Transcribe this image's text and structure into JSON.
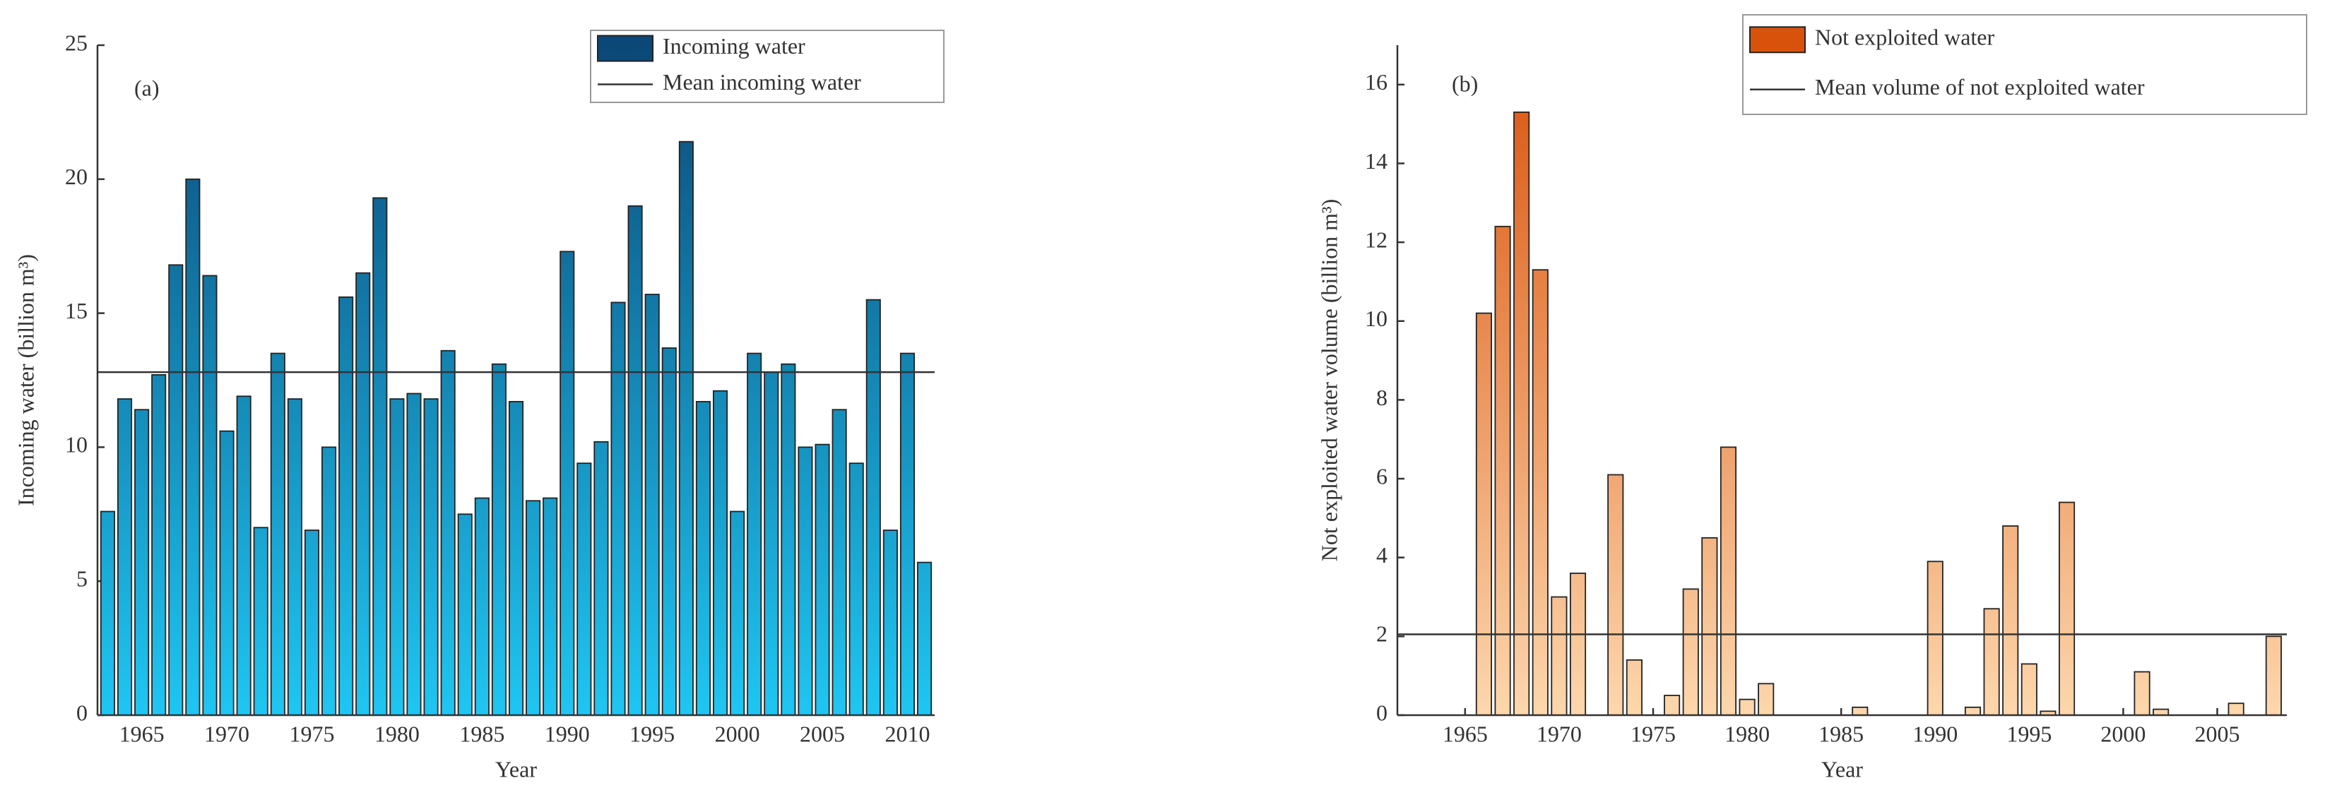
{
  "chart_data": [
    {
      "type": "bar",
      "annotation": "(a)",
      "xlabel": "Year",
      "ylabel": "Incoming water (billion m³)",
      "x": [
        1963,
        1964,
        1965,
        1966,
        1967,
        1968,
        1969,
        1970,
        1971,
        1972,
        1973,
        1974,
        1975,
        1976,
        1977,
        1978,
        1979,
        1980,
        1981,
        1982,
        1983,
        1984,
        1985,
        1986,
        1987,
        1988,
        1989,
        1990,
        1991,
        1992,
        1993,
        1994,
        1995,
        1996,
        1997,
        1998,
        1999,
        2000,
        2001,
        2002,
        2003,
        2004,
        2005,
        2006,
        2007,
        2008,
        2009,
        2010,
        2011
      ],
      "series": [
        {
          "name": "Incoming water",
          "color": [
            "#0b4877",
            "#1fc6f2"
          ],
          "values": [
            7.6,
            11.8,
            11.4,
            12.7,
            16.8,
            20.0,
            16.4,
            10.6,
            11.9,
            7.0,
            13.5,
            11.8,
            6.9,
            10.0,
            15.6,
            16.5,
            19.3,
            11.8,
            12.0,
            11.8,
            13.6,
            7.5,
            8.1,
            13.1,
            11.7,
            8.0,
            8.1,
            17.3,
            9.4,
            10.2,
            15.4,
            19.0,
            15.7,
            13.7,
            21.4,
            11.7,
            12.1,
            7.6,
            13.5,
            12.8,
            13.1,
            10.0,
            10.1,
            11.4,
            9.4,
            15.5,
            6.9,
            13.5,
            5.7
          ]
        },
        {
          "name": "Mean incoming water",
          "type": "hline",
          "color": "#333333",
          "value": 12.8
        }
      ],
      "xlim": [
        1962.4,
        2011.6
      ],
      "xticks": [
        1965,
        1970,
        1975,
        1980,
        1985,
        1990,
        1995,
        2000,
        2005,
        2010
      ],
      "ylim": [
        0,
        25
      ],
      "yticks": [
        0,
        5,
        10,
        15,
        20,
        25
      ]
    },
    {
      "type": "bar",
      "annotation": "(b)",
      "xlabel": "Year",
      "ylabel": "Not exploited water volume (billion m³)",
      "x": [
        1963,
        1964,
        1965,
        1966,
        1967,
        1968,
        1969,
        1970,
        1971,
        1972,
        1973,
        1974,
        1975,
        1976,
        1977,
        1978,
        1979,
        1980,
        1981,
        1982,
        1983,
        1984,
        1985,
        1986,
        1987,
        1988,
        1989,
        1990,
        1991,
        1992,
        1993,
        1994,
        1995,
        1996,
        1997,
        1998,
        1999,
        2000,
        2001,
        2002,
        2003,
        2004,
        2005,
        2006,
        2007,
        2008
      ],
      "series": [
        {
          "name": "Not exploited water",
          "color": [
            "#d9520c",
            "#fdd7ad"
          ],
          "values": [
            0,
            0,
            0,
            10.2,
            12.4,
            15.3,
            11.3,
            3.0,
            3.6,
            0,
            6.1,
            1.4,
            0,
            0.5,
            3.2,
            4.5,
            6.8,
            0.4,
            0.8,
            0,
            0,
            0,
            0,
            0.2,
            0,
            0,
            0,
            3.9,
            0,
            0.2,
            2.7,
            4.8,
            1.3,
            0.1,
            5.4,
            0,
            0,
            0,
            1.1,
            0.15,
            0,
            0,
            0,
            0.3,
            0,
            2.0
          ]
        },
        {
          "name": "Mean volume of not exploited water",
          "type": "hline",
          "color": "#333333",
          "value": 2.05
        }
      ],
      "xlim": [
        1961.4,
        2008.7
      ],
      "xticks": [
        1965,
        1970,
        1975,
        1980,
        1985,
        1990,
        1995,
        2000,
        2005
      ],
      "ylim": [
        0,
        17
      ],
      "yticks": [
        0,
        2,
        4,
        6,
        8,
        10,
        12,
        14,
        16
      ]
    }
  ]
}
